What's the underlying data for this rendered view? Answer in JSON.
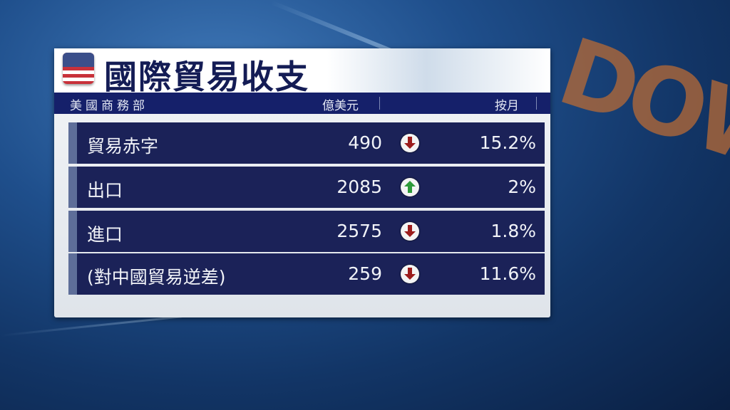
{
  "title": "國際貿易收支",
  "header": {
    "source": "美國商務部",
    "unit": "億美元",
    "change": "按月"
  },
  "rows": [
    {
      "label": "貿易赤字",
      "value": "490",
      "direction": "down",
      "change": "15.2%"
    },
    {
      "label": "出口",
      "value": "2085",
      "direction": "up",
      "change": "2%"
    },
    {
      "label": "進口",
      "value": "2575",
      "direction": "down",
      "change": "1.8%"
    },
    {
      "label": "(對中國貿易逆差)",
      "value": "259",
      "direction": "down",
      "change": "11.6%"
    }
  ],
  "background_text": "DOW",
  "colors": {
    "up": "#2e9a3a",
    "down": "#9b1c1c",
    "navy": "#1b2258"
  }
}
